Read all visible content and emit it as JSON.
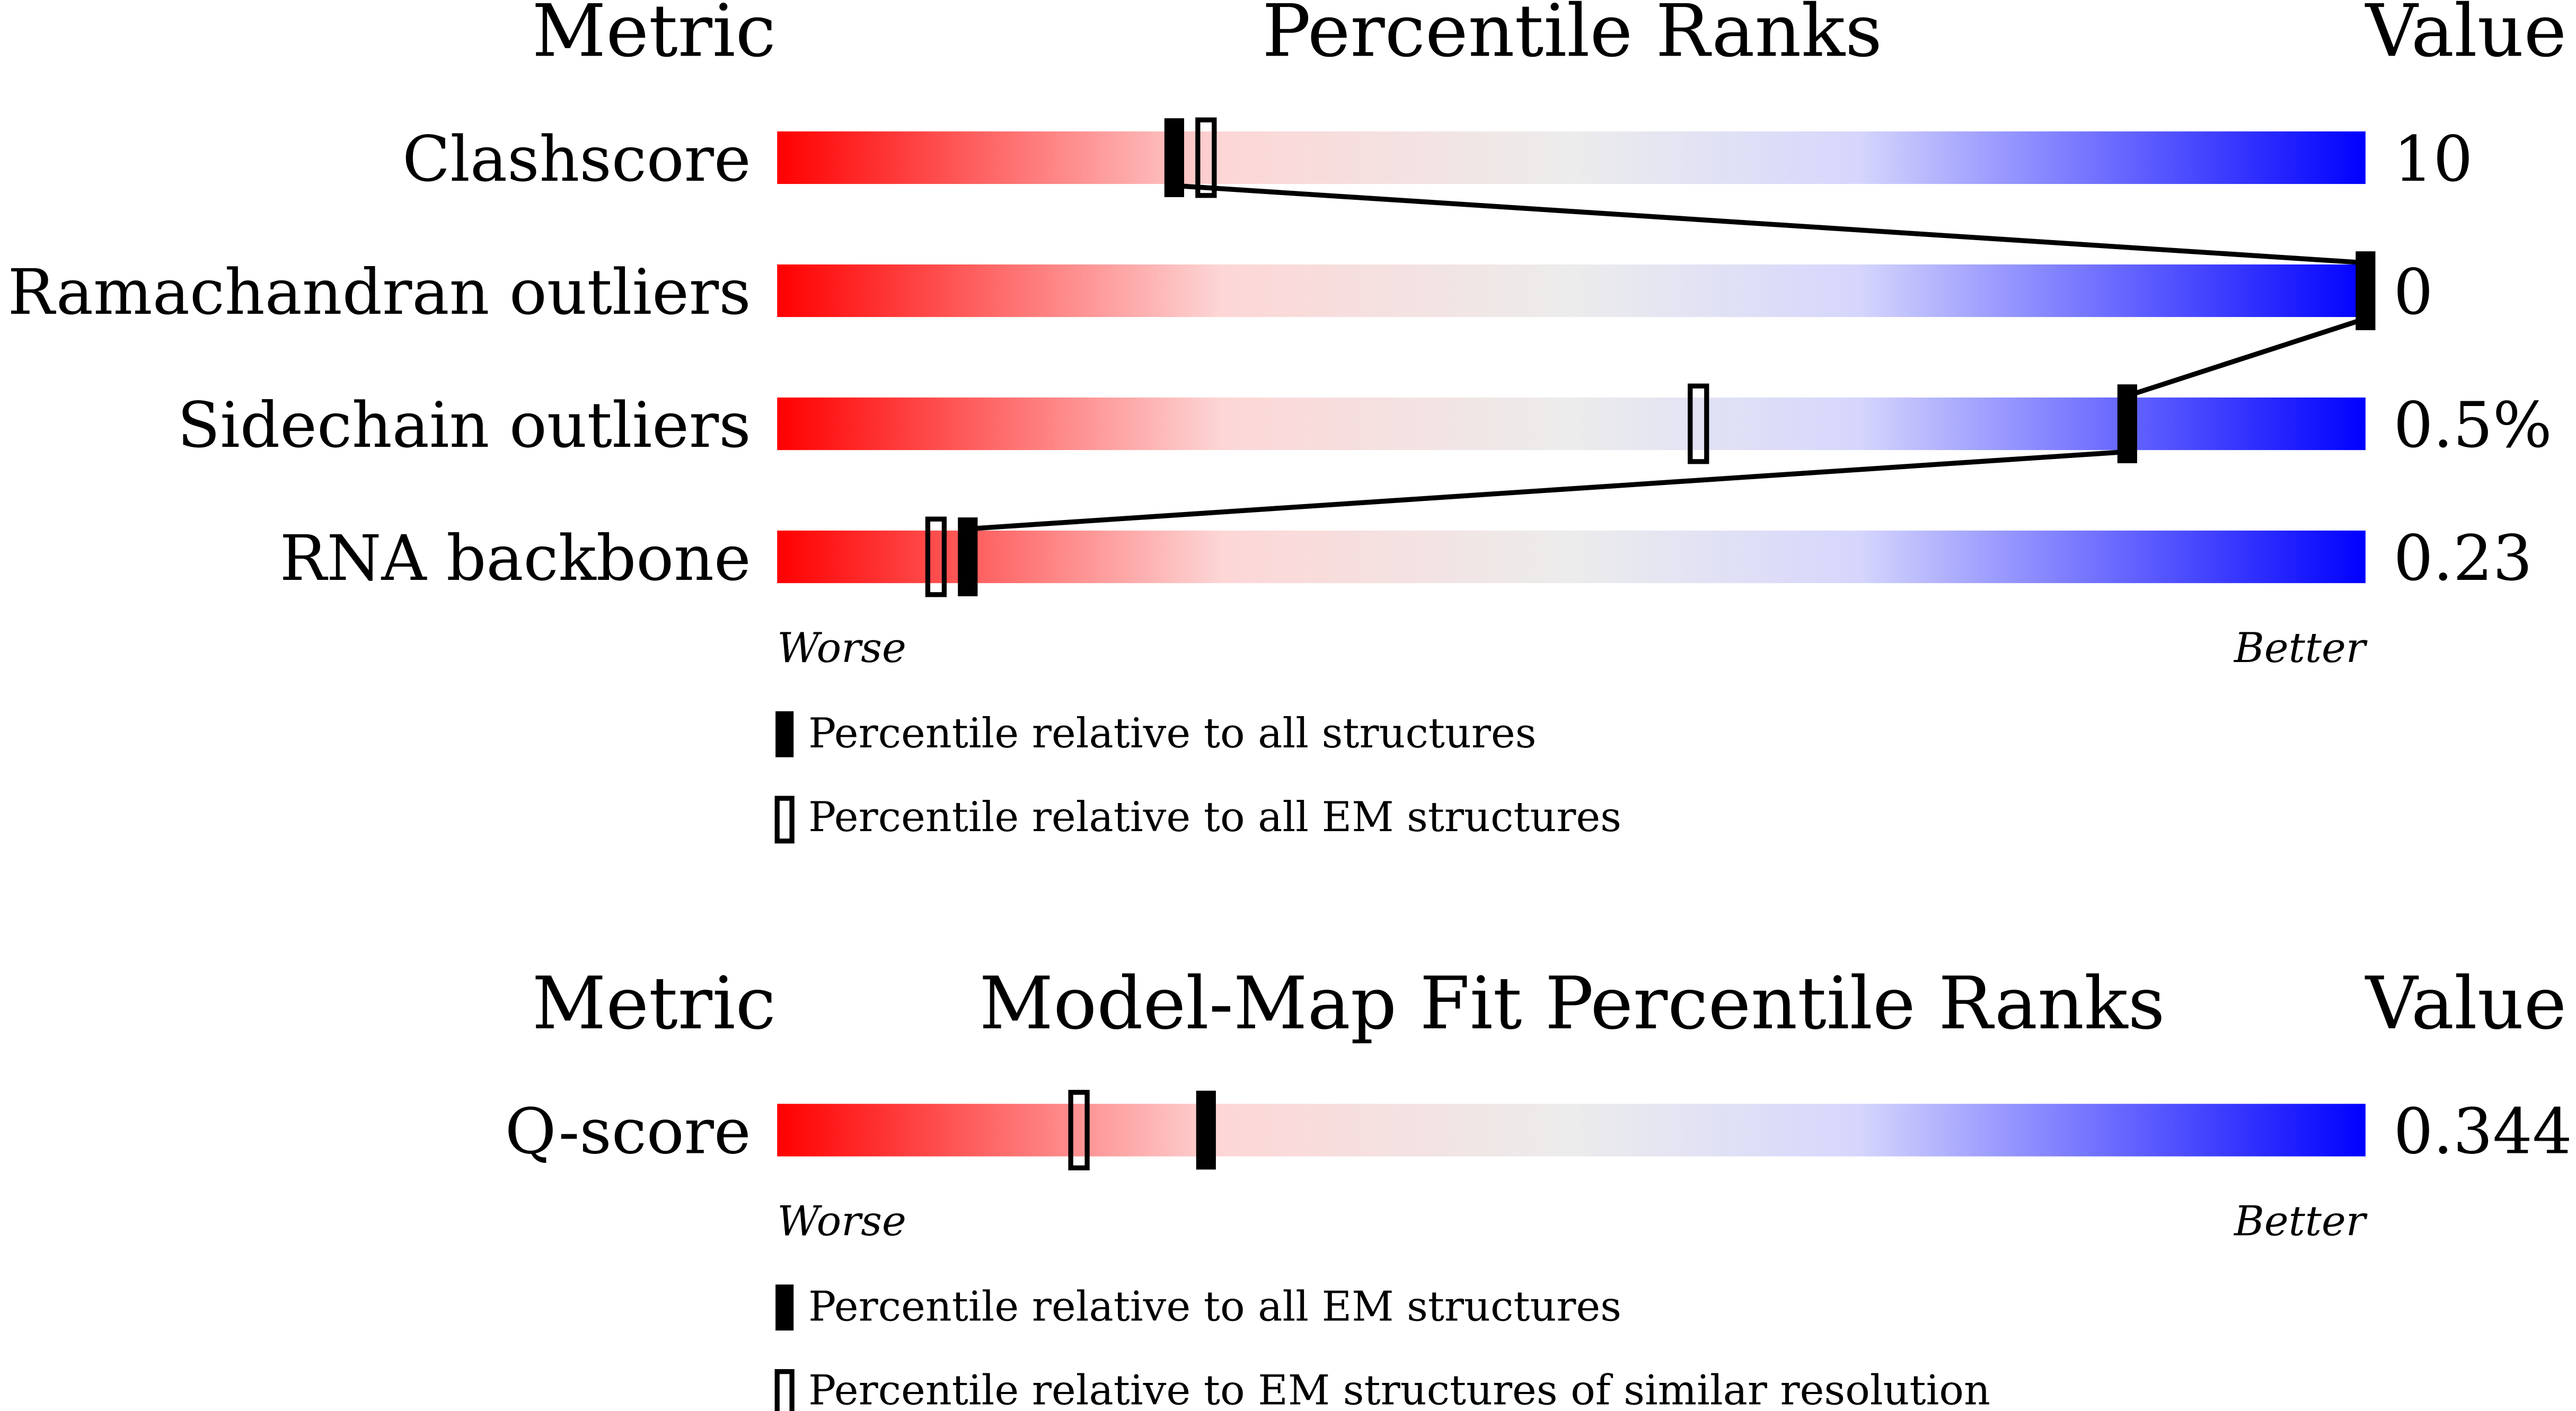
{
  "panels": [
    {
      "headers": {
        "metric": "Metric",
        "title": "Percentile Ranks",
        "value": "Value"
      },
      "xlim": [
        0,
        100
      ],
      "connect": true,
      "rows": [
        {
          "metric": "Clashscore",
          "value": "10",
          "percentile_filled": 25,
          "percentile_open": 27
        },
        {
          "metric": "Ramachandran outliers",
          "value": "0",
          "percentile_filled": 100,
          "percentile_open": null
        },
        {
          "metric": "Sidechain outliers",
          "value": "0.5%",
          "percentile_filled": 85,
          "percentile_open": 58
        },
        {
          "metric": "RNA backbone",
          "value": "0.23",
          "percentile_filled": 12,
          "percentile_open": 10
        }
      ],
      "axis": {
        "worse": "Worse",
        "better": "Better"
      },
      "legend": {
        "filled": "Percentile relative to all structures",
        "open": "Percentile relative to all EM structures"
      }
    },
    {
      "headers": {
        "metric": "Metric",
        "title": "Model-Map Fit Percentile Ranks",
        "value": "Value"
      },
      "xlim": [
        0,
        100
      ],
      "connect": false,
      "rows": [
        {
          "metric": "Q-score",
          "value": "0.344",
          "percentile_filled": 27,
          "percentile_open": 19
        }
      ],
      "axis": {
        "worse": "Worse",
        "better": "Better"
      },
      "legend": {
        "filled": "Percentile relative to all EM structures",
        "open": "Percentile relative to EM structures of similar resolution"
      }
    }
  ]
}
